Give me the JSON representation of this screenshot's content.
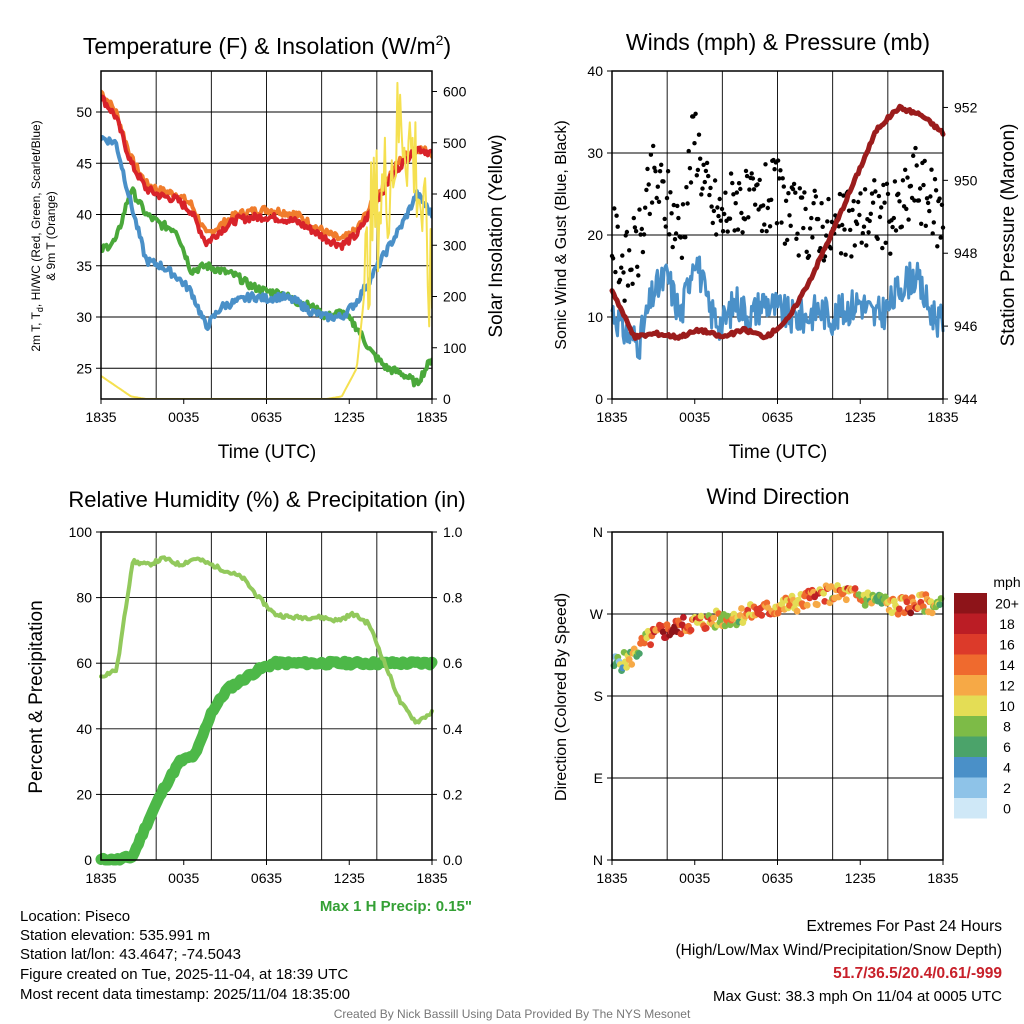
{
  "time_ticks": [
    "1835",
    "0035",
    "0635",
    "1235",
    "1835"
  ],
  "chart_data": [
    {
      "type": "line",
      "title": "Temperature (F) & Insolation (W/m²)",
      "title_main": "Temperature (F) & Insolation (W/m",
      "title_sup": "2",
      "title_end": ")",
      "xlabel": "Time (UTC)",
      "ylabel_line1": "2m T, T",
      "ylabel_sub": "d",
      "ylabel_line1_rest": ", HI/WC (Red, Green, Scarlet/Blue)",
      "ylabel_line2": "& 9m T (Orange)",
      "ylabel_right": "Solar Insolation (Yellow)",
      "ylim": [
        22,
        54
      ],
      "yticks": [
        25,
        30,
        35,
        40,
        45,
        50
      ],
      "ylim_right": [
        0,
        640
      ],
      "yticks_right": [
        0,
        100,
        200,
        300,
        400,
        500,
        600
      ],
      "series": [
        {
          "name": "9m T",
          "axis": "left",
          "color": "#f07c2c",
          "width": 4,
          "values": [
            52.0,
            50.0,
            45.5,
            43.0,
            42.3,
            42.0,
            41.0,
            38.0,
            39.0,
            40.0,
            40.3,
            40.5,
            40.3,
            40.0,
            39.0,
            38.2,
            37.5,
            38.5,
            41.0,
            43.5,
            45.5,
            46.5,
            46.0
          ]
        },
        {
          "name": "2m T",
          "axis": "left",
          "color": "#d8232a",
          "width": 4,
          "values": [
            51.5,
            49.5,
            45.0,
            42.5,
            41.8,
            41.5,
            40.3,
            37.2,
            38.5,
            39.5,
            39.7,
            39.8,
            39.6,
            39.3,
            38.5,
            37.6,
            37.0,
            38.0,
            40.5,
            43.0,
            45.0,
            46.5,
            46.0
          ]
        },
        {
          "name": "Td",
          "axis": "left",
          "color": "#4aa83a",
          "width": 4,
          "values": [
            36.5,
            37.5,
            42.5,
            40.0,
            39.0,
            38.5,
            34.5,
            35.0,
            34.5,
            34.0,
            33.0,
            32.5,
            32.3,
            31.5,
            31.0,
            30.0,
            30.5,
            29.0,
            26.5,
            25.0,
            24.5,
            23.5,
            26.0
          ]
        },
        {
          "name": "WC",
          "axis": "left",
          "color": "#4a90c8",
          "width": 4,
          "values": [
            47.5,
            47.0,
            41.0,
            35.5,
            35.0,
            34.0,
            32.5,
            29.0,
            31.0,
            31.5,
            32.0,
            31.8,
            32.0,
            31.5,
            30.5,
            30.0,
            30.0,
            31.5,
            34.0,
            36.5,
            39.0,
            42.0,
            40.0
          ]
        },
        {
          "name": "Solar Insolation",
          "axis": "right",
          "color": "#f5e050",
          "width": 2,
          "values": [
            45,
            25,
            5,
            0,
            0,
            0,
            0,
            0,
            0,
            0,
            0,
            0,
            0,
            0,
            0,
            0,
            5,
            60,
            350,
            420,
            550,
            450,
            180
          ]
        }
      ]
    },
    {
      "type": "line",
      "title": "Winds (mph) & Pressure (mb)",
      "xlabel": "Time (UTC)",
      "ylabel": "Sonic Wind & Gust (Blue, Black)",
      "ylabel_right": "Station Pressure (Maroon)",
      "ylim": [
        0,
        40
      ],
      "yticks": [
        0,
        10,
        20,
        30,
        40
      ],
      "ylim_right": [
        944,
        953
      ],
      "yticks_right": [
        944,
        946,
        948,
        950,
        952
      ],
      "series": [
        {
          "name": "Sonic Wind",
          "axis": "left",
          "color": "#4a90c8",
          "width": 3,
          "values": [
            11,
            8,
            7,
            13,
            15,
            10,
            18,
            11,
            9,
            12,
            10,
            12,
            11,
            10,
            10,
            11,
            10,
            11,
            12,
            10,
            11,
            14,
            15,
            11,
            9
          ]
        },
        {
          "name": "Gust",
          "axis": "left",
          "color": "#000000",
          "type": "scatter",
          "values": [
            20,
            16,
            19,
            27,
            24,
            20,
            33,
            24,
            22,
            25,
            23,
            24,
            25,
            22,
            21,
            22,
            20,
            21,
            22,
            23,
            22,
            23,
            27,
            24,
            22
          ]
        },
        {
          "name": "Station Pressure",
          "axis": "right",
          "color": "#9b1c1c",
          "width": 5,
          "values": [
            947.0,
            945.7,
            945.8,
            945.7,
            945.9,
            945.7,
            945.9,
            945.7,
            946.2,
            947.3,
            948.6,
            950.0,
            951.4,
            952.0,
            951.8,
            951.3
          ]
        }
      ]
    },
    {
      "type": "line",
      "title": "Relative Humidity (%) & Precipitation (in)",
      "ylabel": "Percent & Precipitation",
      "ylim": [
        0,
        100
      ],
      "yticks": [
        0,
        20,
        40,
        60,
        80,
        100
      ],
      "ylim_right": [
        0,
        1.0
      ],
      "yticks_right": [
        "0.0",
        "0.2",
        "0.4",
        "0.6",
        "0.8",
        "1.0"
      ],
      "note": "Max 1 H Precip: 0.15\"",
      "series": [
        {
          "name": "Relative Humidity",
          "axis": "left",
          "color": "#92c95c",
          "width": 4,
          "values": [
            56,
            58,
            91,
            90,
            92,
            90,
            92,
            90,
            88,
            86,
            80,
            75,
            74,
            74,
            74,
            73,
            75,
            72,
            60,
            48,
            42,
            45
          ]
        },
        {
          "name": "Precipitation (scaled to %)",
          "axis": "left",
          "color": "#4db848",
          "width": 11,
          "values": [
            0,
            0,
            1,
            12,
            22,
            30,
            32,
            45,
            52,
            55,
            58,
            60,
            60,
            60,
            60,
            60,
            60,
            60,
            60,
            60,
            60,
            60
          ]
        }
      ]
    },
    {
      "type": "scatter",
      "title": "Wind Direction",
      "ylabel": "Direction (Colored By Speed)",
      "yticks": [
        "N",
        "E",
        "S",
        "W",
        "N"
      ],
      "ylim": [
        0,
        360
      ],
      "colorbar_title": "mph",
      "colorbar_labels": [
        "0",
        "2",
        "4",
        "6",
        "8",
        "10",
        "12",
        "14",
        "16",
        "18",
        "20+"
      ],
      "colorbar_colors": [
        "#cfe8f7",
        "#8ec3e8",
        "#4a90c8",
        "#4ba36a",
        "#7dbb47",
        "#e4dd55",
        "#f6a946",
        "#ef6a2e",
        "#dc3a2a",
        "#bb1d25",
        "#8d1419"
      ],
      "points_speed": [
        6,
        8,
        12,
        16,
        18,
        14,
        12,
        11,
        10,
        13,
        14,
        12,
        13,
        15,
        10,
        14,
        12,
        8,
        11,
        16,
        12,
        9
      ],
      "points_dir": [
        215,
        220,
        240,
        250,
        255,
        260,
        262,
        265,
        268,
        272,
        275,
        280,
        283,
        290,
        292,
        292,
        288,
        285,
        278,
        280,
        282,
        278
      ]
    }
  ],
  "footer": {
    "location": "Location: Piseco",
    "elevation": "Station elevation: 535.991 m",
    "latlon": "Station lat/lon: 43.4647; -74.5043",
    "created": "Figure created on Tue, 2025-11-04, at 18:39 UTC",
    "recent": "Most recent data timestamp: 2025/11/04 18:35:00",
    "extremes_title": "Extremes For Past 24 Hours",
    "extremes_legend": "(High/Low/Max Wind/Precipitation/Snow Depth)",
    "extremes_values": "51.7/36.5/20.4/0.61/-999",
    "max_gust": "Max Gust: 38.3 mph On 11/04 at 0005 UTC",
    "credit": "Created By Nick Bassill Using Data Provided By The NYS Mesonet"
  }
}
